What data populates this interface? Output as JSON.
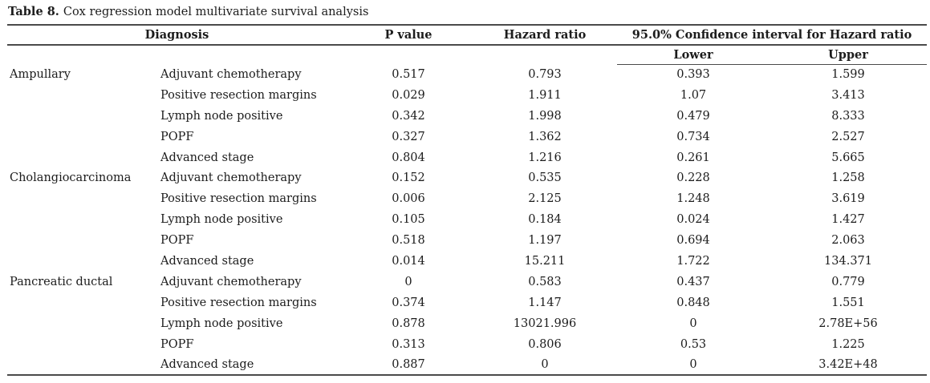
{
  "caption": {
    "label": "Table 8.",
    "text": "Cox regression model multivariate survival analysis"
  },
  "table": {
    "headers": {
      "diagnosis": "Diagnosis",
      "p_value": "P value",
      "hazard_ratio": "Hazard ratio",
      "ci": "95.0% Confidence interval for Hazard ratio",
      "ci_lower": "Lower",
      "ci_upper": "Upper"
    },
    "groups": [
      {
        "diagnosis": "Ampullary",
        "rows": [
          {
            "variable": "Adjuvant chemotherapy",
            "p_value": "0.517",
            "hazard_ratio": "0.793",
            "lower": "0.393",
            "upper": "1.599"
          },
          {
            "variable": "Positive resection margins",
            "p_value": "0.029",
            "hazard_ratio": "1.911",
            "lower": "1.07",
            "upper": "3.413"
          },
          {
            "variable": "Lymph node positive",
            "p_value": "0.342",
            "hazard_ratio": "1.998",
            "lower": "0.479",
            "upper": "8.333"
          },
          {
            "variable": "POPF",
            "p_value": "0.327",
            "hazard_ratio": "1.362",
            "lower": "0.734",
            "upper": "2.527"
          },
          {
            "variable": "Advanced stage",
            "p_value": "0.804",
            "hazard_ratio": "1.216",
            "lower": "0.261",
            "upper": "5.665"
          }
        ]
      },
      {
        "diagnosis": "Cholangiocarcinoma",
        "rows": [
          {
            "variable": "Adjuvant chemotherapy",
            "p_value": "0.152",
            "hazard_ratio": "0.535",
            "lower": "0.228",
            "upper": "1.258"
          },
          {
            "variable": "Positive resection margins",
            "p_value": "0.006",
            "hazard_ratio": "2.125",
            "lower": "1.248",
            "upper": "3.619"
          },
          {
            "variable": "Lymph node positive",
            "p_value": "0.105",
            "hazard_ratio": "0.184",
            "lower": "0.024",
            "upper": "1.427"
          },
          {
            "variable": "POPF",
            "p_value": "0.518",
            "hazard_ratio": "1.197",
            "lower": "0.694",
            "upper": "2.063"
          },
          {
            "variable": "Advanced stage",
            "p_value": "0.014",
            "hazard_ratio": "15.211",
            "lower": "1.722",
            "upper": "134.371"
          }
        ]
      },
      {
        "diagnosis": "Pancreatic ductal",
        "rows": [
          {
            "variable": "Adjuvant chemotherapy",
            "p_value": "0",
            "hazard_ratio": "0.583",
            "lower": "0.437",
            "upper": "0.779"
          },
          {
            "variable": "Positive resection margins",
            "p_value": "0.374",
            "hazard_ratio": "1.147",
            "lower": "0.848",
            "upper": "1.551"
          },
          {
            "variable": "Lymph node positive",
            "p_value": "0.878",
            "hazard_ratio": "13021.996",
            "lower": "0",
            "upper": "2.78E+56"
          },
          {
            "variable": "POPF",
            "p_value": "0.313",
            "hazard_ratio": "0.806",
            "lower": "0.53",
            "upper": "1.225"
          },
          {
            "variable": "Advanced stage",
            "p_value": "0.887",
            "hazard_ratio": "0",
            "lower": "0",
            "upper": "3.42E+48"
          }
        ]
      }
    ]
  }
}
